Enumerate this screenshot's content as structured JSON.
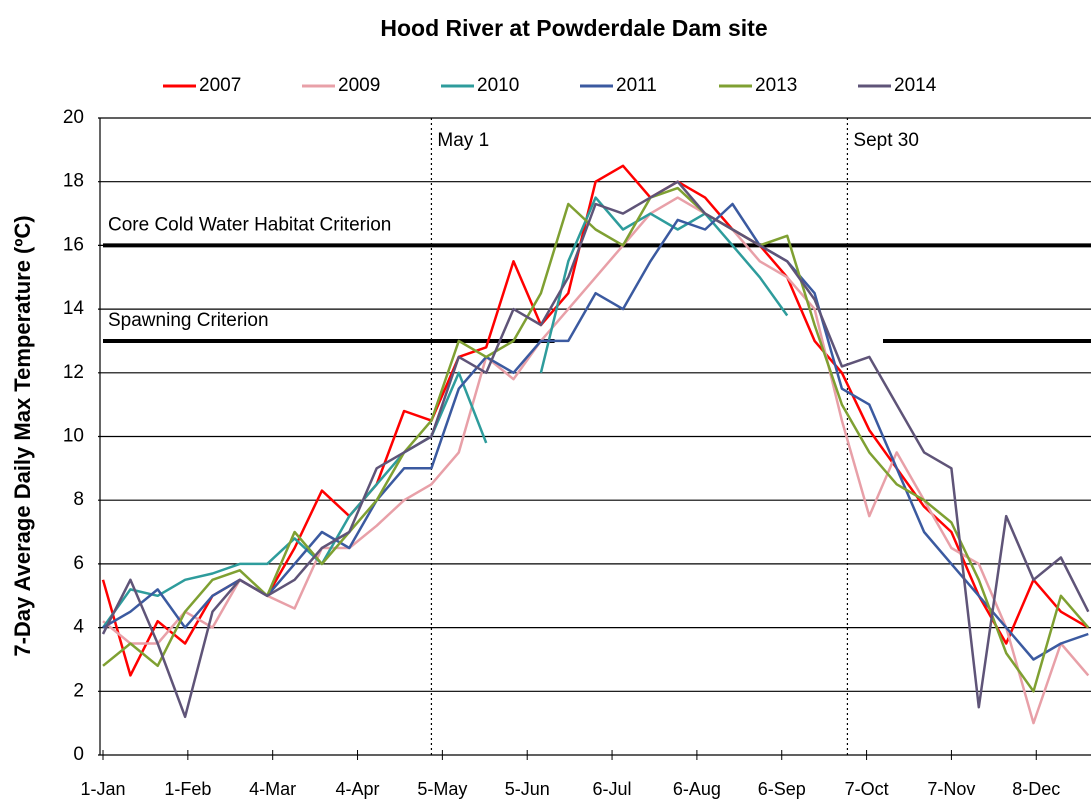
{
  "chart_data": {
    "type": "line",
    "title": "Hood River at Powderdale Dam site",
    "y_label": "7-Day Average Daily Max Temperature (ºC)",
    "x": [
      0,
      10,
      20,
      30,
      40,
      50,
      60,
      70,
      80,
      90,
      100,
      110,
      120,
      130,
      140,
      150,
      160,
      170,
      180,
      190,
      200,
      210,
      220,
      230,
      240,
      250,
      260,
      270,
      280,
      290,
      300,
      310,
      320,
      330,
      340,
      350,
      360
    ],
    "xlim": [
      0,
      361
    ],
    "xticks": [
      {
        "value": 0,
        "label": "1-Jan"
      },
      {
        "value": 31,
        "label": "1-Feb"
      },
      {
        "value": 62,
        "label": "4-Mar"
      },
      {
        "value": 93,
        "label": "4-Apr"
      },
      {
        "value": 124,
        "label": "5-May"
      },
      {
        "value": 155,
        "label": "5-Jun"
      },
      {
        "value": 186,
        "label": "6-Jul"
      },
      {
        "value": 217,
        "label": "6-Aug"
      },
      {
        "value": 248,
        "label": "6-Sep"
      },
      {
        "value": 279,
        "label": "7-Oct"
      },
      {
        "value": 310,
        "label": "7-Nov"
      },
      {
        "value": 341,
        "label": "8-Dec"
      }
    ],
    "ylim": [
      0,
      20
    ],
    "yticks": [
      0,
      2,
      4,
      6,
      8,
      10,
      12,
      14,
      16,
      18,
      20
    ],
    "grid": true,
    "legend": "top",
    "series": [
      {
        "name": "2007",
        "color": "#ff0000",
        "values": [
          5.5,
          2.5,
          4.2,
          3.5,
          5.0,
          5.5,
          5.0,
          6.5,
          8.3,
          7.5,
          8.5,
          10.8,
          10.5,
          12.5,
          12.8,
          15.5,
          13.5,
          14.5,
          18.0,
          18.5,
          17.5,
          18.0,
          17.5,
          16.5,
          16.0,
          15.0,
          13.0,
          12.0,
          10.2,
          9.0,
          7.8,
          7.0,
          5.0,
          3.5,
          5.5,
          4.5,
          4.0
        ]
      },
      {
        "name": "2009",
        "color": "#e8a0a8",
        "values": [
          4.2,
          3.5,
          3.5,
          4.5,
          4.0,
          5.5,
          5.0,
          4.6,
          6.5,
          6.5,
          7.2,
          8.0,
          8.5,
          9.5,
          12.5,
          11.8,
          13.0,
          14.0,
          15.0,
          16.0,
          17.0,
          17.5,
          17.0,
          16.5,
          15.5,
          15.0,
          14.0,
          10.5,
          7.5,
          9.5,
          8.0,
          6.5,
          6.0,
          4.0,
          1.0,
          3.5,
          2.5
        ]
      },
      {
        "name": "2010",
        "color": "#2e9c9c",
        "values": [
          4.0,
          5.2,
          5.0,
          5.5,
          5.7,
          6.0,
          6.0,
          6.8,
          6.0,
          7.5,
          8.5,
          9.5,
          10.0,
          12.0,
          9.8,
          null,
          12.0,
          15.5,
          17.5,
          16.5,
          17.0,
          16.5,
          17.0,
          16.0,
          15.0,
          13.8,
          null,
          null,
          null,
          null,
          null,
          null,
          null,
          null,
          null,
          null,
          null
        ]
      },
      {
        "name": "2011",
        "color": "#3b5aa0",
        "values": [
          4.0,
          4.5,
          5.2,
          4.0,
          5.0,
          5.5,
          5.0,
          6.0,
          7.0,
          6.5,
          8.0,
          9.0,
          9.0,
          11.5,
          12.5,
          12.0,
          13.0,
          13.0,
          14.5,
          14.0,
          15.5,
          16.8,
          16.5,
          17.3,
          16.0,
          15.5,
          14.5,
          11.5,
          11.0,
          9.0,
          7.0,
          6.0,
          5.0,
          4.0,
          3.0,
          3.5,
          3.8
        ]
      },
      {
        "name": "2013",
        "color": "#7fa032",
        "values": [
          2.8,
          3.5,
          2.8,
          4.5,
          5.5,
          5.8,
          5.0,
          7.0,
          6.0,
          7.0,
          8.0,
          9.5,
          10.5,
          13.0,
          12.5,
          13.0,
          14.5,
          17.3,
          16.5,
          16.0,
          17.5,
          17.8,
          17.0,
          16.5,
          16.0,
          16.3,
          13.5,
          11.0,
          9.5,
          8.5,
          8.0,
          7.3,
          5.5,
          3.2,
          2.0,
          5.0,
          4.0
        ]
      },
      {
        "name": "2014",
        "color": "#5f5478",
        "values": [
          3.8,
          5.5,
          3.5,
          1.2,
          4.5,
          5.5,
          5.0,
          5.5,
          6.5,
          7.0,
          9.0,
          9.5,
          10.0,
          12.5,
          12.0,
          14.0,
          13.5,
          15.0,
          17.3,
          17.0,
          17.5,
          18.0,
          17.0,
          16.5,
          16.0,
          15.5,
          14.3,
          12.2,
          12.5,
          11.0,
          9.5,
          9.0,
          1.5,
          7.5,
          5.5,
          6.2,
          4.5
        ]
      }
    ],
    "vlines": [
      {
        "x": 120,
        "label": "May 1"
      },
      {
        "x": 272,
        "label": "Sept 30"
      }
    ],
    "hlines": [
      {
        "y": 16,
        "label": "Core Cold Water Habitat Criterion",
        "spans": [
          [
            0,
            361
          ]
        ]
      },
      {
        "y": 13,
        "label": "Spawning Criterion",
        "spans": [
          [
            0,
            165
          ],
          [
            285,
            361
          ]
        ]
      }
    ]
  }
}
